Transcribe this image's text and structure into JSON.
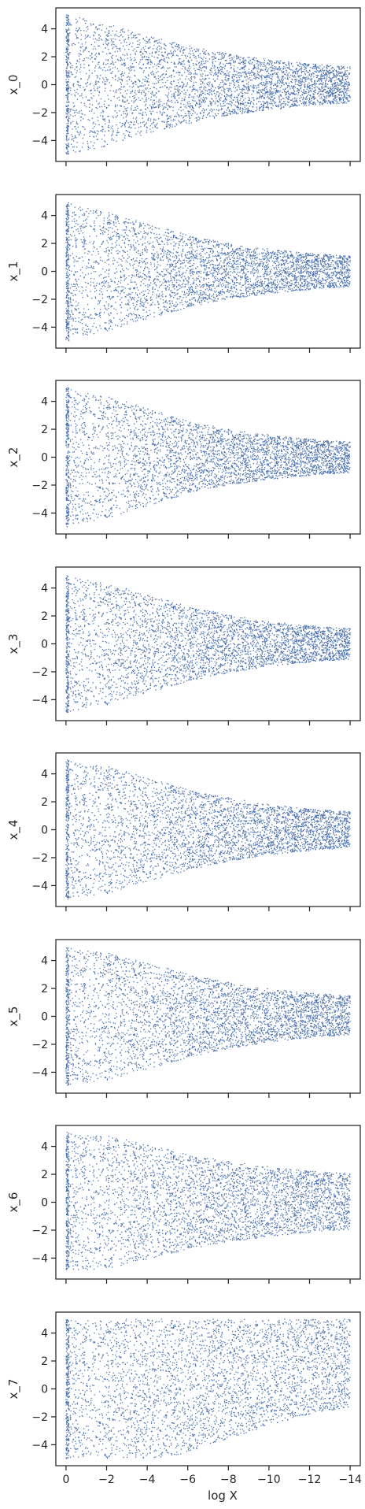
{
  "chart_data": {
    "type": "scatter",
    "subplot_count": 8,
    "shared_x": true,
    "xlabel": "log X",
    "xlim": [
      0.5,
      -14.5
    ],
    "x_ticks": [
      0,
      -2,
      -4,
      -6,
      -8,
      -10,
      -12,
      -14
    ],
    "x_tick_labels": [
      "0",
      "−2",
      "−4",
      "−6",
      "−8",
      "−10",
      "−12",
      "−14"
    ],
    "ylim": [
      -5.5,
      5.5
    ],
    "y_ticks": [
      4,
      2,
      0,
      -2,
      -4
    ],
    "y_tick_labels": [
      "4",
      "2",
      "0",
      "−2",
      "−4"
    ],
    "marker_color": "#4C72B0",
    "axes_color": "#262626",
    "background": "#ffffff",
    "grid": false,
    "legend": "none",
    "panels": [
      {
        "ylabel": "x_0",
        "envelope": [
          [
            0,
            5.0
          ],
          [
            -2,
            4.4
          ],
          [
            -4,
            3.5
          ],
          [
            -6,
            2.8
          ],
          [
            -8,
            2.2
          ],
          [
            -10,
            1.8
          ],
          [
            -12,
            1.5
          ],
          [
            -14,
            1.3
          ]
        ],
        "center": [
          [
            0,
            0.0
          ],
          [
            -14,
            0.0
          ]
        ]
      },
      {
        "ylabel": "x_1",
        "envelope": [
          [
            0,
            5.0
          ],
          [
            -2,
            4.3
          ],
          [
            -4,
            3.4
          ],
          [
            -6,
            2.6
          ],
          [
            -8,
            2.0
          ],
          [
            -10,
            1.6
          ],
          [
            -12,
            1.3
          ],
          [
            -14,
            1.1
          ]
        ],
        "center": [
          [
            0,
            0.0
          ],
          [
            -14,
            0.0
          ]
        ]
      },
      {
        "ylabel": "x_2",
        "envelope": [
          [
            0,
            5.0
          ],
          [
            -2,
            4.4
          ],
          [
            -4,
            3.5
          ],
          [
            -6,
            2.6
          ],
          [
            -8,
            2.0
          ],
          [
            -10,
            1.6
          ],
          [
            -12,
            1.3
          ],
          [
            -14,
            1.1
          ]
        ],
        "center": [
          [
            0,
            0.0
          ],
          [
            -14,
            0.0
          ]
        ]
      },
      {
        "ylabel": "x_3",
        "envelope": [
          [
            0,
            5.0
          ],
          [
            -2,
            4.4
          ],
          [
            -4,
            3.5
          ],
          [
            -6,
            2.7
          ],
          [
            -8,
            2.1
          ],
          [
            -10,
            1.6
          ],
          [
            -12,
            1.3
          ],
          [
            -14,
            1.1
          ]
        ],
        "center": [
          [
            0,
            0.0
          ],
          [
            -14,
            0.0
          ]
        ]
      },
      {
        "ylabel": "x_4",
        "envelope": [
          [
            0,
            5.0
          ],
          [
            -2,
            4.6
          ],
          [
            -4,
            3.7
          ],
          [
            -6,
            2.9
          ],
          [
            -8,
            2.3
          ],
          [
            -10,
            1.8
          ],
          [
            -12,
            1.5
          ],
          [
            -14,
            1.3
          ]
        ],
        "center": [
          [
            0,
            0.0
          ],
          [
            -14,
            0.0
          ]
        ]
      },
      {
        "ylabel": "x_5",
        "envelope": [
          [
            0,
            5.0
          ],
          [
            -2,
            4.6
          ],
          [
            -4,
            3.8
          ],
          [
            -6,
            3.0
          ],
          [
            -8,
            2.4
          ],
          [
            -10,
            1.9
          ],
          [
            -12,
            1.6
          ],
          [
            -14,
            1.4
          ]
        ],
        "center": [
          [
            0,
            0.0
          ],
          [
            -14,
            0.3
          ]
        ]
      },
      {
        "ylabel": "x_6",
        "envelope": [
          [
            0,
            5.0
          ],
          [
            -2,
            4.8
          ],
          [
            -4,
            4.1
          ],
          [
            -6,
            3.4
          ],
          [
            -8,
            2.9
          ],
          [
            -10,
            2.5
          ],
          [
            -12,
            2.2
          ],
          [
            -14,
            2.0
          ]
        ],
        "center": [
          [
            0,
            0.0
          ],
          [
            -14,
            0.2
          ]
        ]
      },
      {
        "ylabel": "x_7",
        "envelope": [
          [
            0,
            5.0
          ],
          [
            -2,
            5.0
          ],
          [
            -4,
            5.0
          ],
          [
            -6,
            5.0
          ],
          [
            -8,
            5.0
          ],
          [
            -10,
            5.0
          ],
          [
            -12,
            5.0
          ],
          [
            -14,
            5.0
          ]
        ],
        "lower_envelope": [
          [
            0,
            -5.0
          ],
          [
            -4,
            -5.0
          ],
          [
            -6,
            -4.6
          ],
          [
            -8,
            -3.6
          ],
          [
            -10,
            -2.6
          ],
          [
            -12,
            -1.8
          ],
          [
            -14,
            -1.3
          ]
        ],
        "center": [
          [
            0,
            0.0
          ],
          [
            -14,
            0.0
          ]
        ]
      }
    ]
  }
}
